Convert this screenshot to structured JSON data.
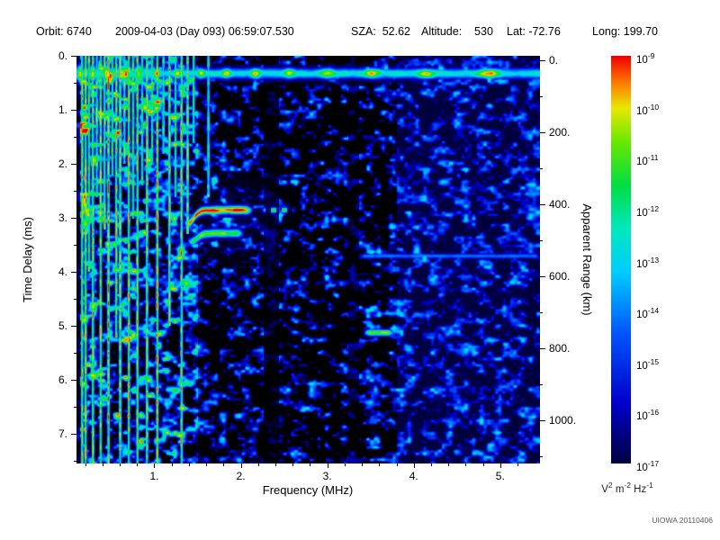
{
  "header": {
    "items": [
      "Orbit: 6740",
      "2009-04-03 (Day 093) 06:59:07.530",
      "SZA:  52.62",
      "Altitude:    530",
      "Lat: -72.76",
      "Long: 199.70"
    ]
  },
  "chart_data": {
    "type": "heatmap",
    "xlabel": "Frequency (MHz)",
    "ylabel_left": "Time Delay (ms)",
    "ylabel_right": "Apparent Range (km)",
    "x_range": [
      0.1,
      5.46
    ],
    "y_range": [
      0,
      7.55
    ],
    "x_ticks": [
      1,
      2,
      3,
      4,
      5
    ],
    "x_tick_labels": [
      "1.",
      "2.",
      "3.",
      "4.",
      "5."
    ],
    "y_ticks": [
      0,
      1,
      2,
      3,
      4,
      5,
      6,
      7
    ],
    "y_tick_labels": [
      "0.",
      "1.",
      "2.",
      "3.",
      "4.",
      "5.",
      "6.",
      "7."
    ],
    "right_ticks": [
      0,
      200,
      400,
      600,
      800,
      1000
    ],
    "right_tick_labels": [
      "0.",
      "200.",
      "400.",
      "600.",
      "800.",
      "1000."
    ],
    "range_km_per_ms": 150,
    "range_zero_delay_ms": 0.08,
    "colorbar": {
      "scale": "log",
      "unit": "V^2 m^-2 Hz^-1",
      "max": "1e-9",
      "min": "1e-17",
      "tick_exponents": [
        "-9",
        "-10",
        "-11",
        "-12",
        "-13",
        "-14",
        "-15",
        "-16",
        "-17"
      ]
    },
    "colormap": [
      [
        0.0,
        "#000000"
      ],
      [
        0.08,
        "#000055"
      ],
      [
        0.2,
        "#0000cc"
      ],
      [
        0.36,
        "#0055ff"
      ],
      [
        0.5,
        "#00ccff"
      ],
      [
        0.6,
        "#00e8c0"
      ],
      [
        0.7,
        "#00dd44"
      ],
      [
        0.8,
        "#66e800"
      ],
      [
        0.88,
        "#e8e800"
      ],
      [
        0.94,
        "#ff7700"
      ],
      [
        1.0,
        "#ee0000"
      ]
    ],
    "features": {
      "surface_band": {
        "t": 0.32,
        "sigma": 0.1,
        "sigma_lowf": 0.17,
        "base": 0.6,
        "blob_amp": 0.34,
        "period_base": 0.13,
        "period_slope": 0.04
      },
      "plasma_lines": [
        [
          0.16,
          7.55,
          0.9
        ],
        [
          0.2,
          7.55,
          0.95
        ],
        [
          0.24,
          4.0,
          0.85
        ],
        [
          0.285,
          7.55,
          0.9
        ],
        [
          0.33,
          2.6,
          0.8
        ],
        [
          0.375,
          7.55,
          0.9
        ],
        [
          0.42,
          3.2,
          0.85
        ],
        [
          0.465,
          7.55,
          0.95
        ],
        [
          0.51,
          2.2,
          0.8
        ],
        [
          0.555,
          5.2,
          0.9
        ],
        [
          0.6,
          7.55,
          0.9
        ],
        [
          0.65,
          2.0,
          0.8
        ],
        [
          0.7,
          7.55,
          0.95
        ],
        [
          0.75,
          3.0,
          0.85
        ],
        [
          0.8,
          7.55,
          0.9
        ],
        [
          0.855,
          2.4,
          0.8
        ],
        [
          0.91,
          7.55,
          0.9
        ],
        [
          0.97,
          2.0,
          0.8
        ],
        [
          1.03,
          7.55,
          0.95
        ],
        [
          1.1,
          1.8,
          0.75
        ],
        [
          1.17,
          5.0,
          0.9
        ],
        [
          1.24,
          2.6,
          0.8
        ],
        [
          1.31,
          7.55,
          0.9
        ],
        [
          1.38,
          3.3,
          0.85
        ],
        [
          1.45,
          1.6,
          0.8
        ],
        [
          1.62,
          2.6,
          0.7
        ]
      ],
      "echo_traces": [
        {
          "f0": 1.38,
          "f1": 2.12,
          "t0": 2.85,
          "st": 0.07,
          "amp": 1.0,
          "hook": 0.25
        },
        {
          "f0": 1.42,
          "f1": 2.02,
          "t0": 3.28,
          "st": 0.07,
          "amp": 0.8,
          "hook": 0.15
        },
        {
          "f0": 2.28,
          "f1": 2.62,
          "t0": 2.85,
          "st": 0.05,
          "amp": 0.7,
          "hook": 0,
          "dash": true
        },
        {
          "f0": 3.46,
          "f1": 3.76,
          "t0": 5.12,
          "st": 0.06,
          "amp": 0.85,
          "hook": 0
        },
        {
          "f0": 3.4,
          "f1": 5.46,
          "t0": 3.7,
          "st": 0.05,
          "amp": 0.42,
          "hook": 0
        }
      ],
      "diffuse": {
        "f": 1.9,
        "t": 3.0,
        "sf": 0.5,
        "st": 0.8,
        "amp": 0.18
      },
      "regions": {
        "left_max_f": 1.5,
        "left_thresh": 0.4,
        "left_gain": 1.6,
        "mid_thresh": 0.5,
        "mid_gain": 1.35,
        "right_min_f": 3.8,
        "right_thresh": 0.44,
        "right_gain": 1.05,
        "right_floor": 0.06,
        "dark_bands": [
          [
            2.26,
            2.44,
            0.25
          ],
          [
            3.24,
            3.36,
            0.45
          ]
        ],
        "left_edge_f": 0.135
      }
    },
    "render": {
      "seed": 17
    }
  },
  "credit": "UIOWA 20110406"
}
